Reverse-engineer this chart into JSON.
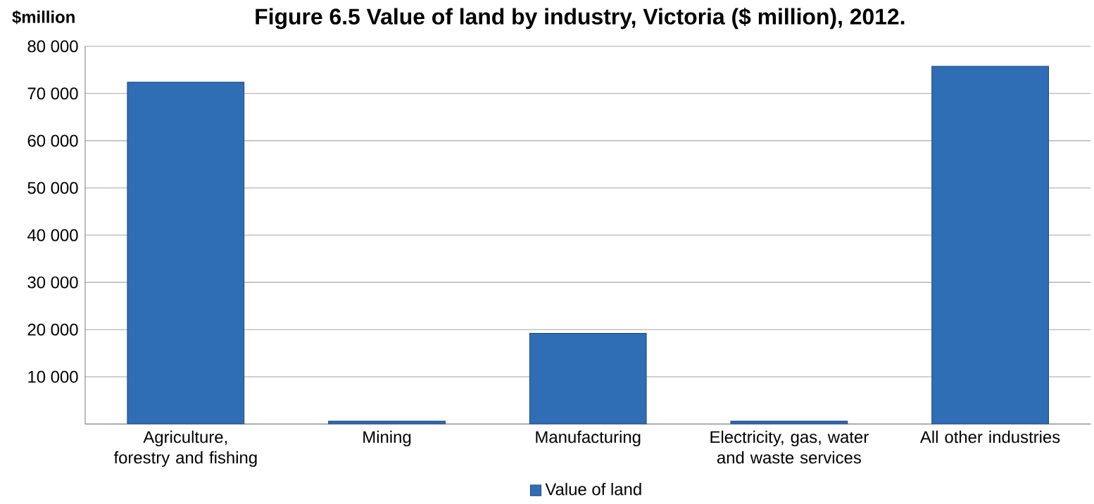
{
  "chart_data": {
    "type": "bar",
    "title": "Figure 6.5 Value of land by industry, Victoria  ($ million), 2012.",
    "ylabel": "$million",
    "categories": [
      "Agriculture, forestry and fishing",
      "Mining",
      "Manufacturing",
      "Electricity, gas, water and waste services",
      "All other industries"
    ],
    "series": [
      {
        "name": "Value of land",
        "color": "#2f6db5",
        "values": [
          72400,
          600,
          19200,
          600,
          75800
        ]
      }
    ],
    "ylim": [
      0,
      80000
    ],
    "yticks": [
      {
        "value": 10000,
        "label": "10 000"
      },
      {
        "value": 20000,
        "label": "20 000"
      },
      {
        "value": 30000,
        "label": "30 000"
      },
      {
        "value": 40000,
        "label": "40 000"
      },
      {
        "value": 50000,
        "label": "50 000"
      },
      {
        "value": 60000,
        "label": "60 000"
      },
      {
        "value": 70000,
        "label": "70 000"
      },
      {
        "value": 80000,
        "label": "80 000"
      }
    ],
    "grid": "y",
    "legend": "bottom"
  }
}
